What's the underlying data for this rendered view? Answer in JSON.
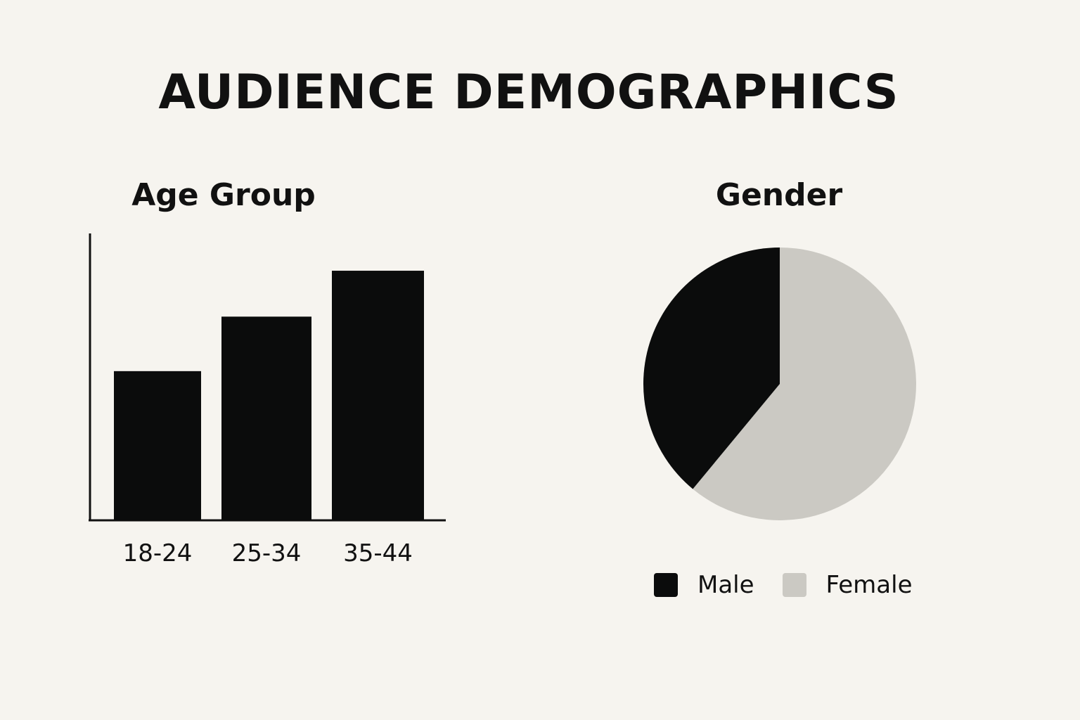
{
  "title": "AUDIENCE DEMOGRAPHICS",
  "colors": {
    "background": "#f6f4ef",
    "bar": "#0b0c0c",
    "male": "#0b0c0c",
    "female": "#cbc9c3"
  },
  "chart_data": [
    {
      "type": "bar",
      "title": "Age Group",
      "categories": [
        "18-24",
        "25-34",
        "35-44"
      ],
      "values": [
        52,
        71,
        87
      ],
      "ylim": [
        0,
        100
      ],
      "grid": false,
      "xlabel": "",
      "ylabel": ""
    },
    {
      "type": "pie",
      "title": "Gender",
      "labels": [
        "Male",
        "Female"
      ],
      "values": [
        39,
        61
      ],
      "legend": "bottom"
    }
  ]
}
